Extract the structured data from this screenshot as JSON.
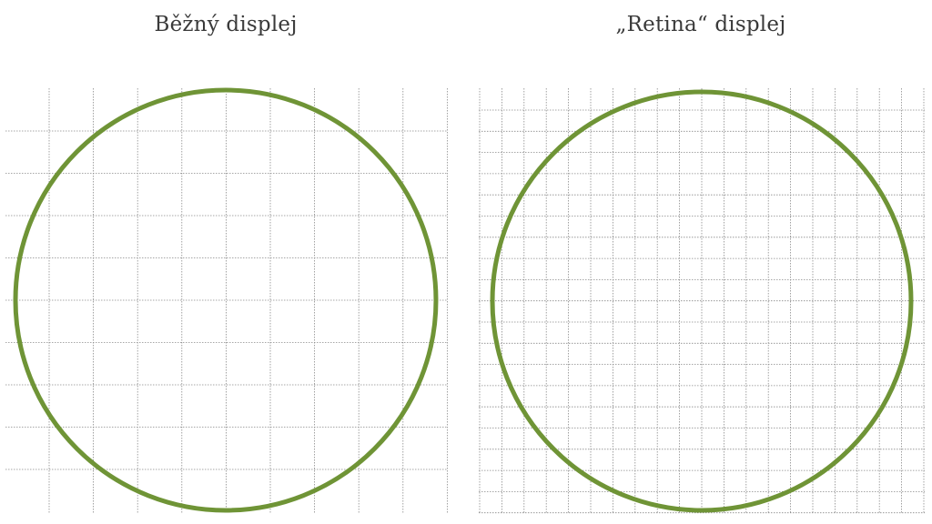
{
  "panels": {
    "left": {
      "title": "Běžný displej"
    },
    "right": {
      "title": "„Retina“ displej"
    }
  },
  "colors": {
    "circle": "#6f9436",
    "grid": "#8a8a8a",
    "text": "#3a3a3a"
  }
}
